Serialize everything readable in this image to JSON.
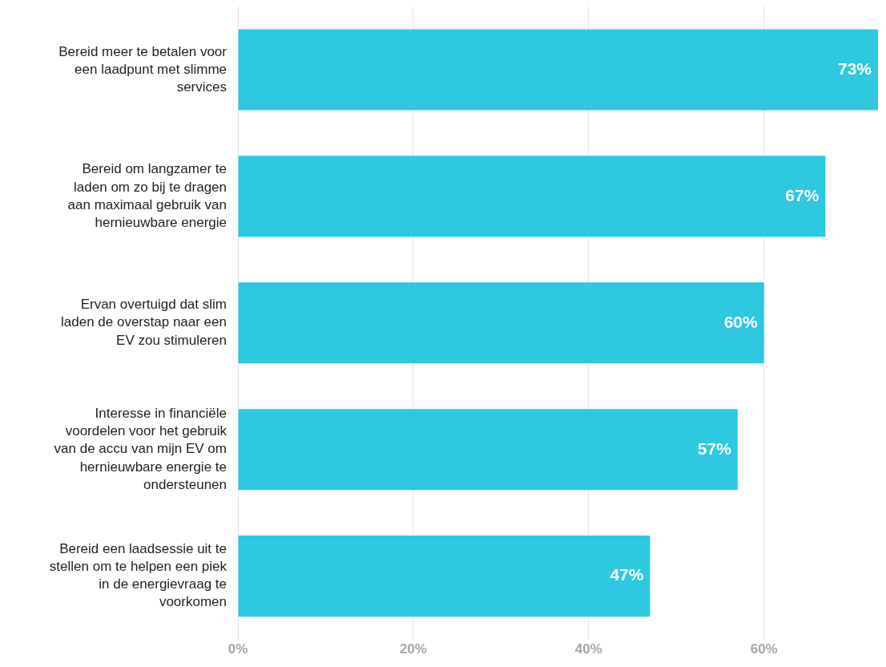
{
  "chart_data": {
    "type": "bar",
    "orientation": "horizontal",
    "categories": [
      "Bereid meer te betalen voor een laadpunt met slimme services",
      "Bereid om langzamer te laden om zo bij te dragen aan maximaal gebruik van hernieuwbare energie",
      "Ervan overtuigd dat slim laden de overstap naar een EV zou stimuleren",
      "Interesse in financiële voordelen voor het gebruik van de accu van mijn EV om hernieuwbare energie te ondersteunen",
      "Bereid een laadsessie uit te stellen om te helpen een piek in de energievraag te voorkomen"
    ],
    "values": [
      73,
      67,
      60,
      57,
      47
    ],
    "color": "#2ec8e0",
    "value_labels": [
      "73%",
      "67%",
      "60%",
      "57%",
      "47%"
    ],
    "xlim": [
      0,
      73
    ],
    "xticks": [
      {
        "value": 0,
        "label": "0%"
      },
      {
        "value": 20,
        "label": "20%"
      },
      {
        "value": 40,
        "label": "40%"
      },
      {
        "value": 60,
        "label": "60%"
      }
    ],
    "grid": "x",
    "legend": false
  }
}
